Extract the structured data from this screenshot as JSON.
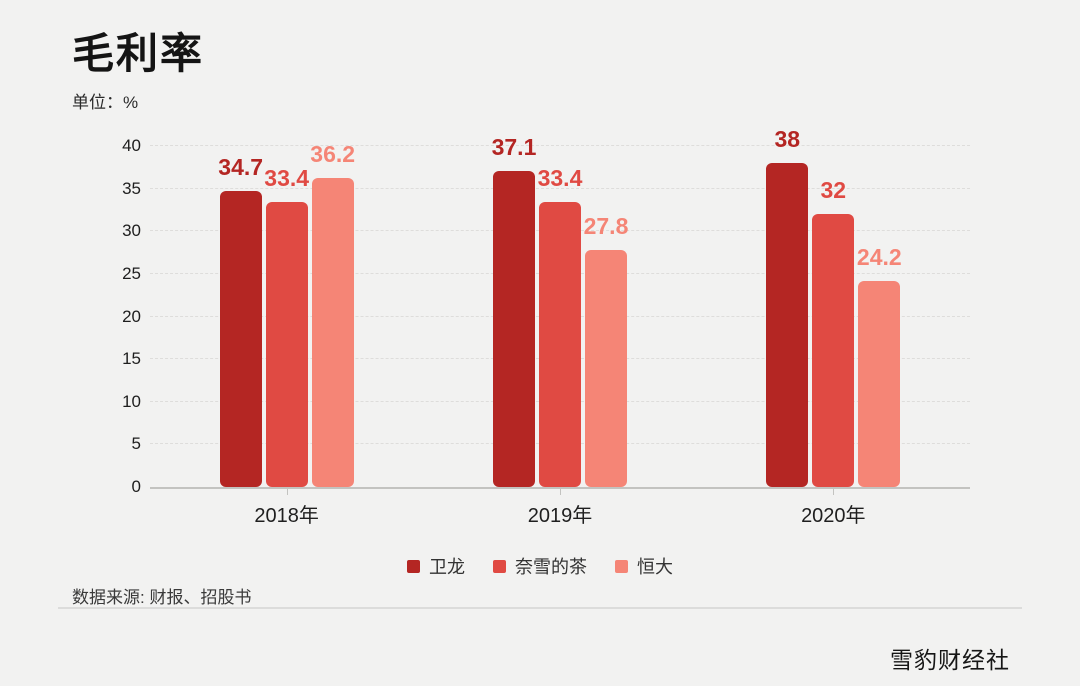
{
  "page": {
    "title": "毛利率",
    "unit_label": "单位：%",
    "source": "数据来源: 财报、招股书",
    "brand": "雪豹财经社"
  },
  "colors": {
    "background": "#f2f2f1",
    "axis_line": "#c3c3c0",
    "gridline": "#dedddb",
    "series_weilong": "#b42623",
    "series_naixue": "#e04a43",
    "series_hengda": "#f58576"
  },
  "chart_data": {
    "type": "bar",
    "title": "毛利率",
    "unit": "%",
    "categories": [
      "2018年",
      "2019年",
      "2020年"
    ],
    "series": [
      {
        "name": "卫龙",
        "color": "#b42623",
        "values": [
          34.7,
          37.1,
          38
        ],
        "labels": [
          "34.7",
          "37.1",
          "38"
        ]
      },
      {
        "name": "奈雪的茶",
        "color": "#e04a43",
        "values": [
          33.4,
          33.4,
          32
        ],
        "labels": [
          "33.4",
          "33.4",
          "32"
        ]
      },
      {
        "name": "恒大",
        "color": "#f58576",
        "values": [
          36.2,
          27.8,
          24.2
        ],
        "labels": [
          "36.2",
          "27.8",
          "24.2"
        ]
      }
    ],
    "y_ticks": [
      0,
      5,
      10,
      15,
      20,
      25,
      30,
      35,
      40
    ],
    "ylim": [
      0,
      40
    ],
    "grid": "dashed-horizontal",
    "legend_position": "bottom"
  }
}
